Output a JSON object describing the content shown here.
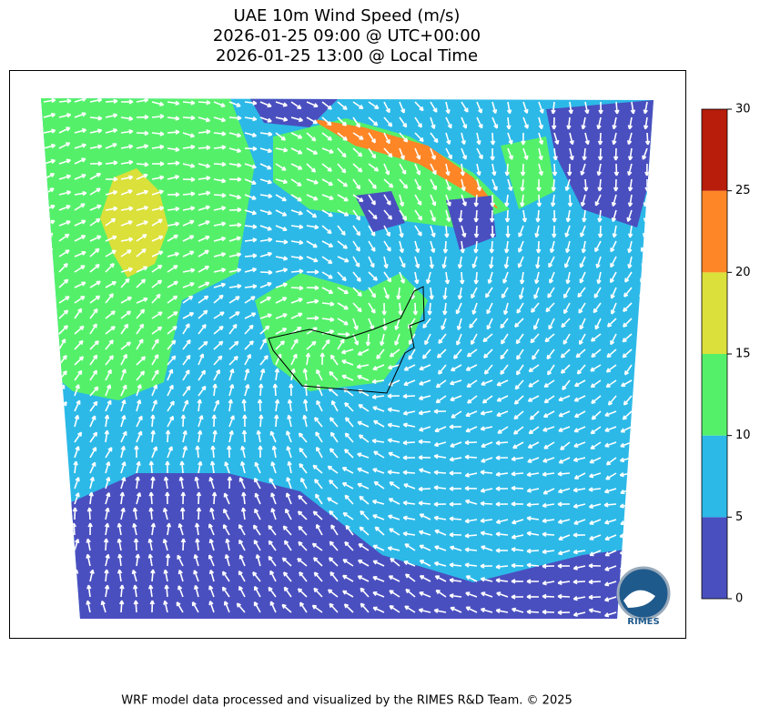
{
  "title": [
    "UAE 10m Wind Speed (m/s)",
    "2026-01-25 09:00 @ UTC+00:00",
    "2026-01-25 13:00 @ Local Time"
  ],
  "colorbar": {
    "lim": [
      0,
      30
    ],
    "ticks": [
      0,
      5,
      10,
      15,
      20,
      25,
      30
    ],
    "colors": [
      "#4a4fbf",
      "#2cb9e8",
      "#55f06a",
      "#dbe03a",
      "#fe8626",
      "#b71d0a"
    ]
  },
  "logo": "RIMES",
  "footer": "WRF model data processed and visualized by the RIMES R&D Team. © 2025"
}
